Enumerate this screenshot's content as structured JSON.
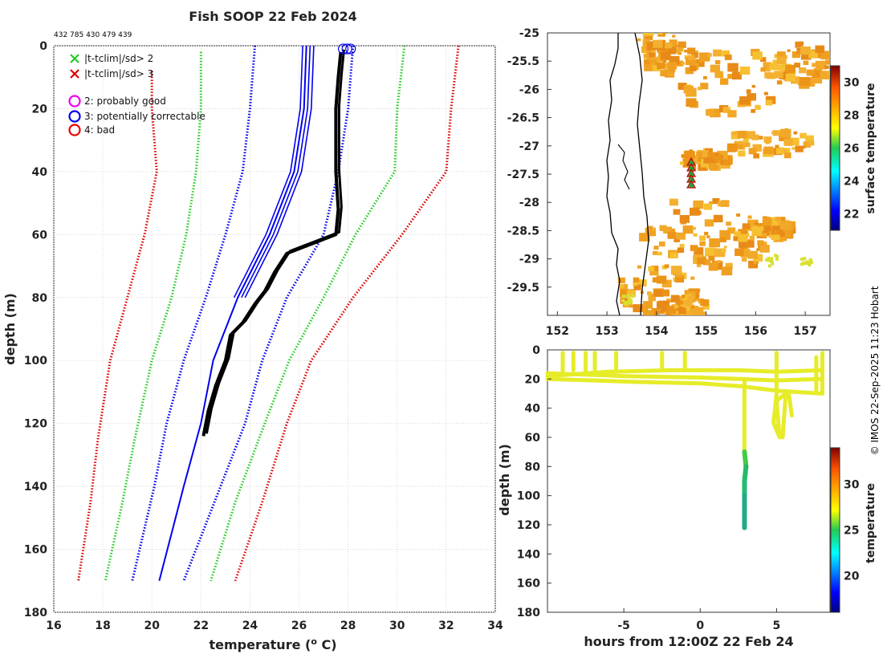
{
  "title": "Fish SOOP 22 Feb 2024",
  "ids": "432 785 430 479 439",
  "credit": "© IMOS 22-Sep-2025 11:23 Hobart",
  "legend": {
    "items": [
      {
        "symbol": "x",
        "color": "#22cc22",
        "label": "|t-tclim|/sd>  2"
      },
      {
        "symbol": "x",
        "color": "#dd0000",
        "label": "|t-tclim|/sd>  3"
      },
      {
        "symbol": "o",
        "color": "#ee00ee",
        "label": "2: probably good"
      },
      {
        "symbol": "o",
        "color": "#0000ee",
        "label": "3: potentially correctable"
      },
      {
        "symbol": "o",
        "color": "#ee0000",
        "label": "4: bad"
      }
    ]
  },
  "chart_data": [
    {
      "type": "line",
      "name": "profile",
      "xlabel": "temperature (o C)",
      "ylabel": "depth (m)",
      "xlim": [
        16,
        34
      ],
      "ylim": [
        0,
        180
      ],
      "x_ticks": [
        "16",
        "18",
        "20",
        "22",
        "24",
        "26",
        "28",
        "30",
        "32",
        "34"
      ],
      "y_ticks": [
        "0",
        "20",
        "40",
        "60",
        "80",
        "100",
        "120",
        "140",
        "160",
        "180"
      ],
      "series": [
        {
          "name": "clim-3sd-low",
          "style": "dotted",
          "color": "#dd0000",
          "points": [
            [
              20,
              8
            ],
            [
              20,
              20
            ],
            [
              20.2,
              40
            ],
            [
              19.7,
              60
            ],
            [
              19,
              80
            ],
            [
              18.3,
              100
            ],
            [
              17.8,
              125
            ],
            [
              17.5,
              145
            ],
            [
              17,
              170
            ]
          ]
        },
        {
          "name": "clim-2sd-low",
          "style": "dotted",
          "color": "#22cc22",
          "points": [
            [
              22,
              2
            ],
            [
              22,
              20
            ],
            [
              21.8,
              40
            ],
            [
              21.4,
              60
            ],
            [
              20.8,
              80
            ],
            [
              20,
              100
            ],
            [
              19.3,
              125
            ],
            [
              18.8,
              145
            ],
            [
              18.1,
              170
            ]
          ]
        },
        {
          "name": "clim-1sd-low",
          "style": "dotted",
          "color": "#0000ee",
          "points": [
            [
              24.2,
              0
            ],
            [
              24,
              20
            ],
            [
              23.7,
              40
            ],
            [
              23,
              60
            ],
            [
              22.2,
              80
            ],
            [
              21.3,
              100
            ],
            [
              20.6,
              120
            ],
            [
              20.1,
              140
            ],
            [
              19.2,
              170
            ]
          ]
        },
        {
          "name": "clim-mean",
          "style": "solid",
          "color": "#0000ee",
          "points": [
            [
              26.3,
              0
            ],
            [
              26.2,
              20
            ],
            [
              25.8,
              40
            ],
            [
              24.8,
              60
            ],
            [
              23.5,
              80
            ],
            [
              22.5,
              100
            ],
            [
              22,
              120
            ],
            [
              21.3,
              140
            ],
            [
              20.3,
              170
            ]
          ]
        },
        {
          "name": "clim-1sd-high",
          "style": "dotted",
          "color": "#0000ee",
          "points": [
            [
              28.2,
              0
            ],
            [
              28,
              20
            ],
            [
              27.6,
              40
            ],
            [
              27,
              60
            ],
            [
              25.5,
              80
            ],
            [
              24.5,
              100
            ],
            [
              23.8,
              120
            ],
            [
              22.8,
              140
            ],
            [
              21.3,
              170
            ]
          ]
        },
        {
          "name": "clim-2sd-high",
          "style": "dotted",
          "color": "#22cc22",
          "points": [
            [
              30.3,
              0
            ],
            [
              30,
              20
            ],
            [
              29.9,
              40
            ],
            [
              28.3,
              60
            ],
            [
              27,
              80
            ],
            [
              25.6,
              100
            ],
            [
              24.6,
              120
            ],
            [
              23.4,
              145
            ],
            [
              22.4,
              170
            ]
          ]
        },
        {
          "name": "clim-3sd-high",
          "style": "dotted",
          "color": "#dd0000",
          "points": [
            [
              32.5,
              0
            ],
            [
              32.2,
              20
            ],
            [
              32,
              40
            ],
            [
              30.2,
              60
            ],
            [
              28.2,
              80
            ],
            [
              26.5,
              100
            ],
            [
              25.5,
              120
            ],
            [
              24.5,
              145
            ],
            [
              23.4,
              170
            ]
          ]
        },
        {
          "name": "observed",
          "style": "thick",
          "color": "#000000",
          "points": [
            [
              27.7,
              2
            ],
            [
              27.6,
              10
            ],
            [
              27.5,
              20
            ],
            [
              27.5,
              30
            ],
            [
              27.5,
              40
            ],
            [
              27.6,
              52
            ],
            [
              27.5,
              60
            ],
            [
              26.5,
              63
            ],
            [
              25.5,
              66
            ],
            [
              25,
              72
            ],
            [
              24.6,
              78
            ],
            [
              24.2,
              82
            ],
            [
              23.7,
              88
            ],
            [
              23.2,
              92
            ],
            [
              23,
              100
            ],
            [
              22.6,
              108
            ],
            [
              22.3,
              116
            ],
            [
              22.1,
              124
            ]
          ]
        }
      ]
    },
    {
      "type": "heatmap",
      "name": "sst-map",
      "xlim": [
        151.8,
        157.5
      ],
      "ylim": [
        -30,
        -25
      ],
      "x_ticks": [
        "152",
        "153",
        "154",
        "155",
        "156",
        "157"
      ],
      "y_ticks": [
        "-25",
        "-25.5",
        "-26",
        "-26.5",
        "-27",
        "-27.5",
        "-28",
        "-28.5",
        "-29",
        "-29.5"
      ],
      "colorbar": {
        "label": "surface temperature",
        "range": [
          21,
          31
        ],
        "ticks": [
          "22",
          "24",
          "26",
          "28",
          "30"
        ]
      },
      "stations": {
        "lon": 154.7,
        "lats": [
          -27.3,
          -27.4,
          -27.5,
          -27.6,
          -27.7
        ]
      }
    },
    {
      "type": "scatter",
      "name": "depth-time",
      "xlabel": "hours from 12:00Z 22 Feb 24",
      "ylabel": "depth (m)",
      "xlim": [
        -10,
        8.5
      ],
      "ylim": [
        0,
        180
      ],
      "x_ticks": [
        "-5",
        "0",
        "5"
      ],
      "y_ticks": [
        "0",
        "20",
        "40",
        "60",
        "80",
        "100",
        "120",
        "140",
        "160",
        "180"
      ],
      "colorbar": {
        "label": "temperature",
        "range": [
          16,
          34
        ],
        "ticks": [
          "20",
          "25",
          "30"
        ]
      }
    }
  ]
}
